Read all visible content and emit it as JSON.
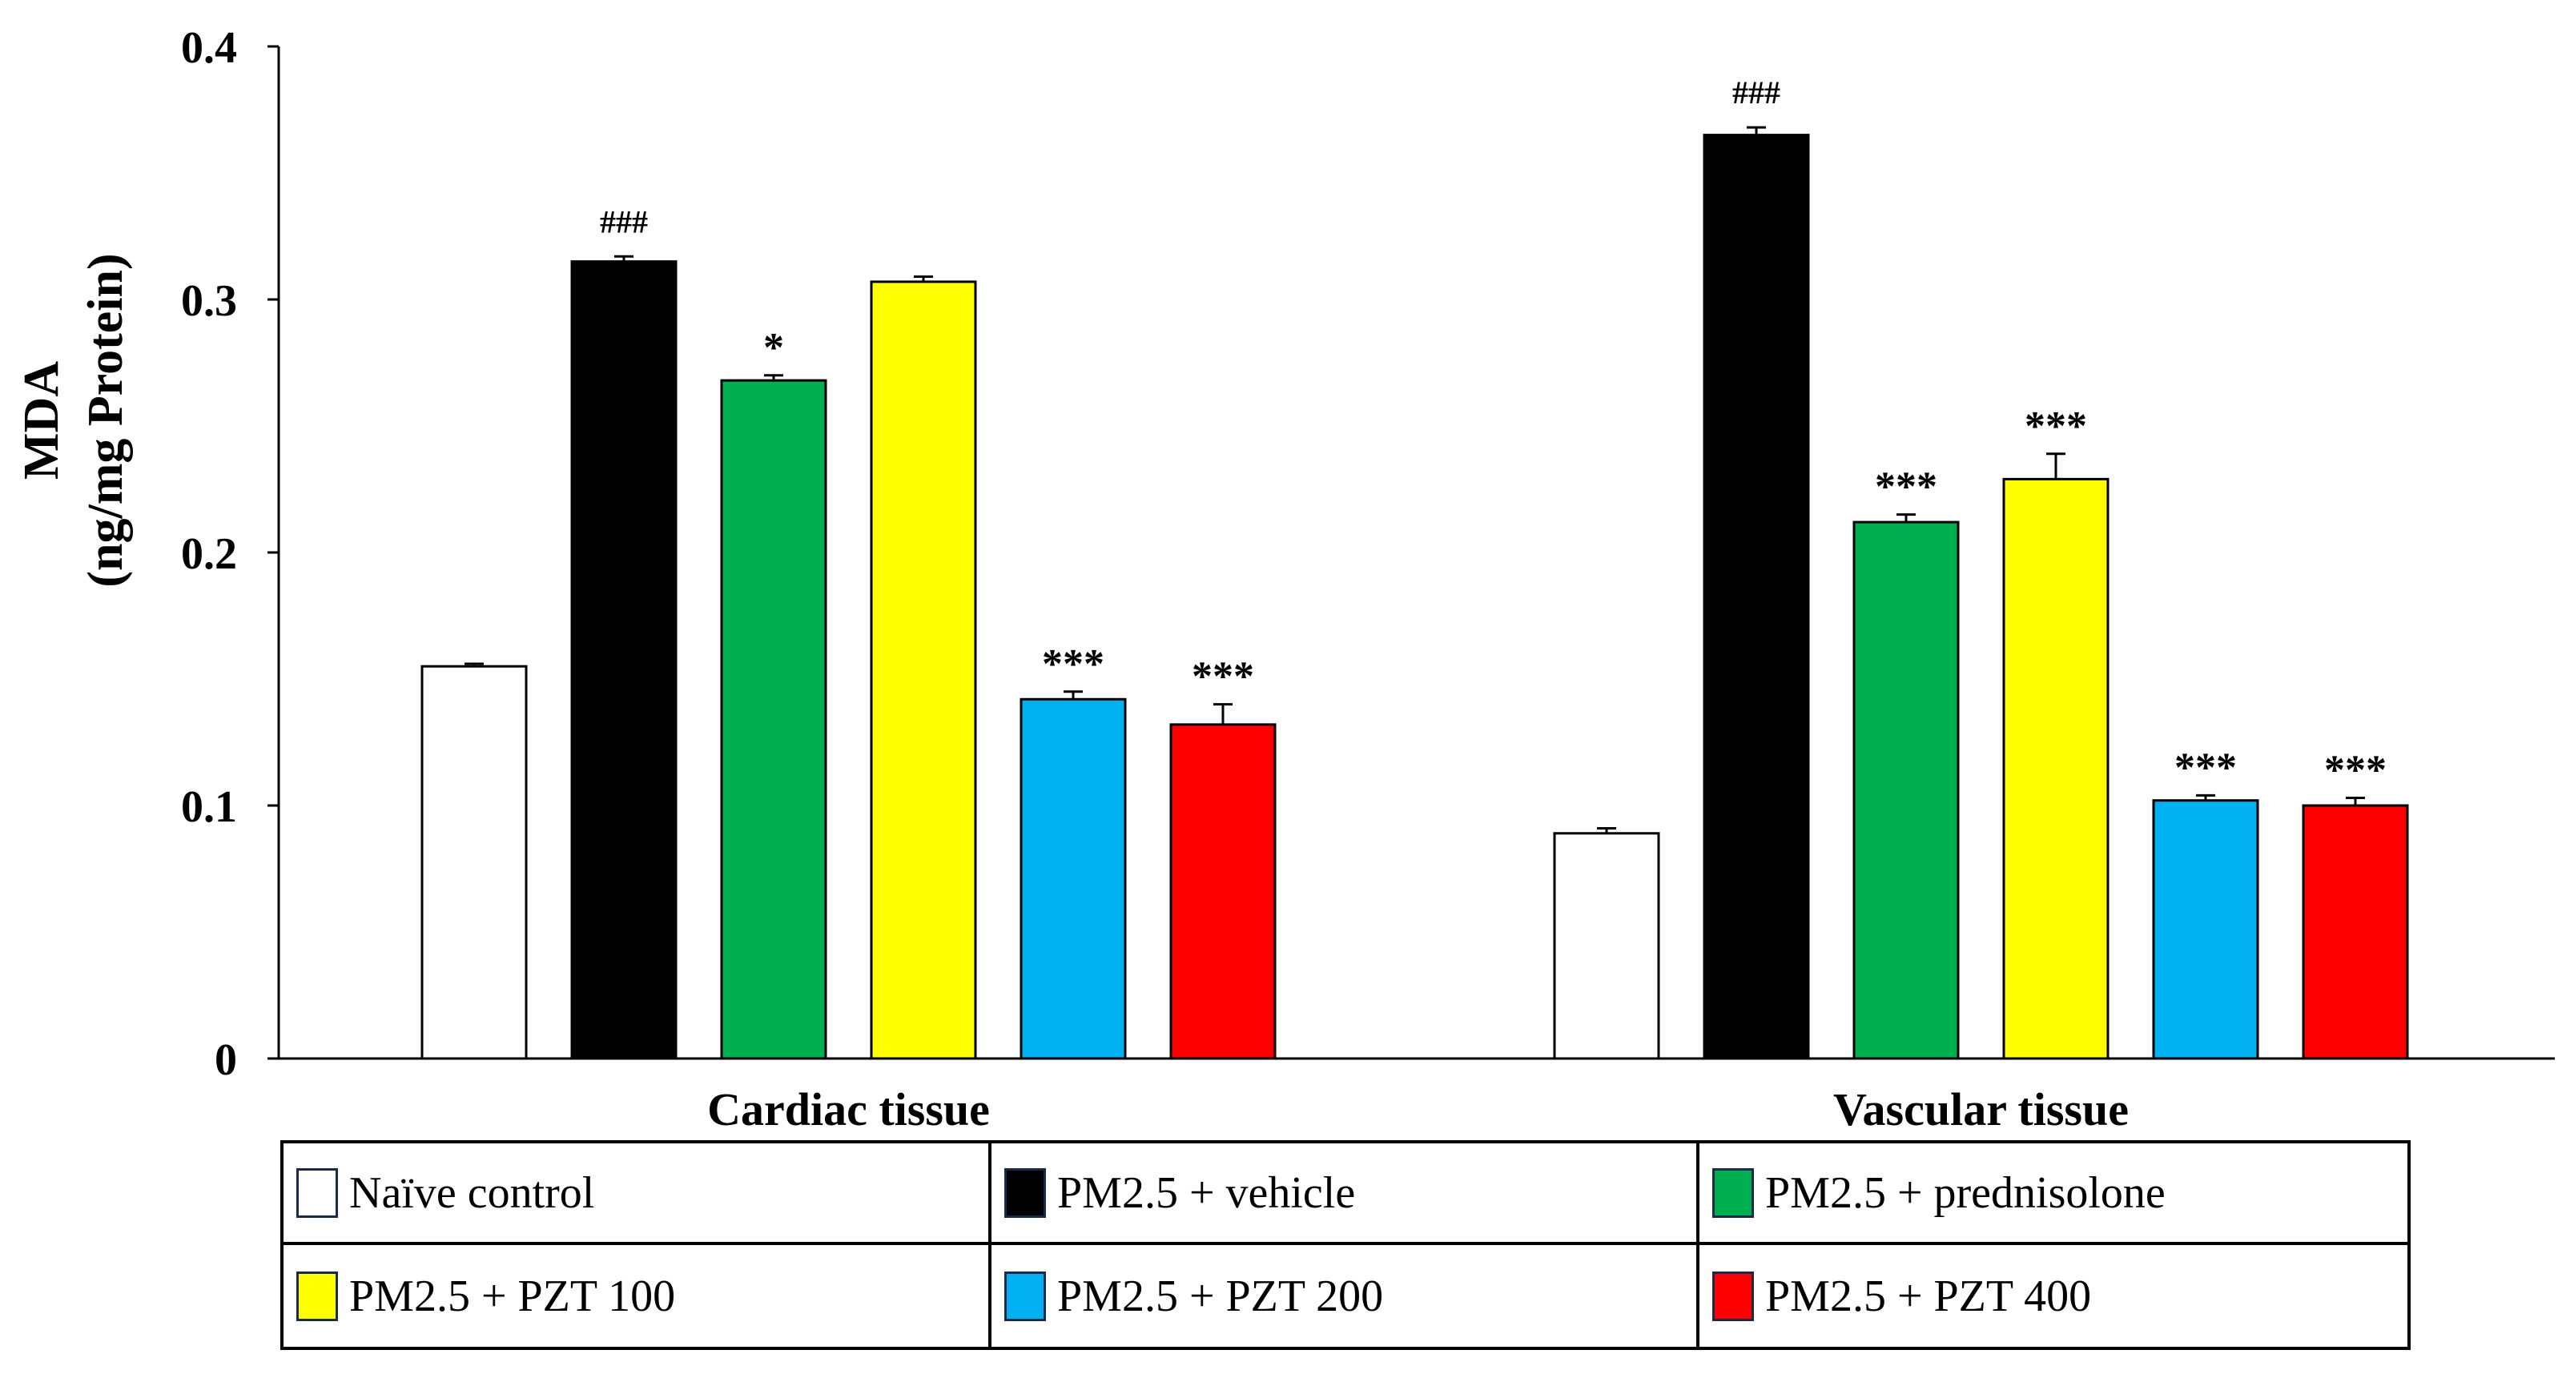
{
  "chart_data": {
    "type": "bar",
    "title": "",
    "ylabel_line1": "MDA",
    "ylabel_line2": "(ng/mg Protein)",
    "xlabel": "",
    "ylim": [
      0,
      0.4
    ],
    "yticks": [
      "0",
      "0.1",
      "0.2",
      "0.3",
      "0.4"
    ],
    "ytick_values": [
      0,
      0.1,
      0.2,
      0.3,
      0.4
    ],
    "categories": [
      "Cardiac tissue",
      "Vascular tissue"
    ],
    "series": [
      {
        "name": "Naïve control",
        "color": "#ffffff",
        "values": [
          0.155,
          0.089
        ],
        "errors": [
          0.001,
          0.002
        ],
        "annotations": [
          "",
          ""
        ]
      },
      {
        "name": "PM2.5 + vehicle",
        "color": "#000000",
        "values": [
          0.315,
          0.365
        ],
        "errors": [
          0.002,
          0.003
        ],
        "annotations": [
          "###",
          "###"
        ]
      },
      {
        "name": "PM2.5 + prednisolone",
        "color": "#00b050",
        "values": [
          0.268,
          0.212
        ],
        "errors": [
          0.002,
          0.003
        ],
        "annotations": [
          "*",
          "***"
        ]
      },
      {
        "name": "PM2.5 + PZT 100",
        "color": "#ffff00",
        "values": [
          0.307,
          0.229
        ],
        "errors": [
          0.002,
          0.01
        ],
        "annotations": [
          "",
          "***"
        ]
      },
      {
        "name": "PM2.5 + PZT 200",
        "color": "#00b0f0",
        "values": [
          0.142,
          0.102
        ],
        "errors": [
          0.003,
          0.002
        ],
        "annotations": [
          "***",
          "***"
        ]
      },
      {
        "name": "PM2.5 + PZT 400",
        "color": "#ff0000",
        "values": [
          0.132,
          0.1
        ],
        "errors": [
          0.008,
          0.003
        ],
        "annotations": [
          "***",
          "***"
        ]
      }
    ]
  }
}
